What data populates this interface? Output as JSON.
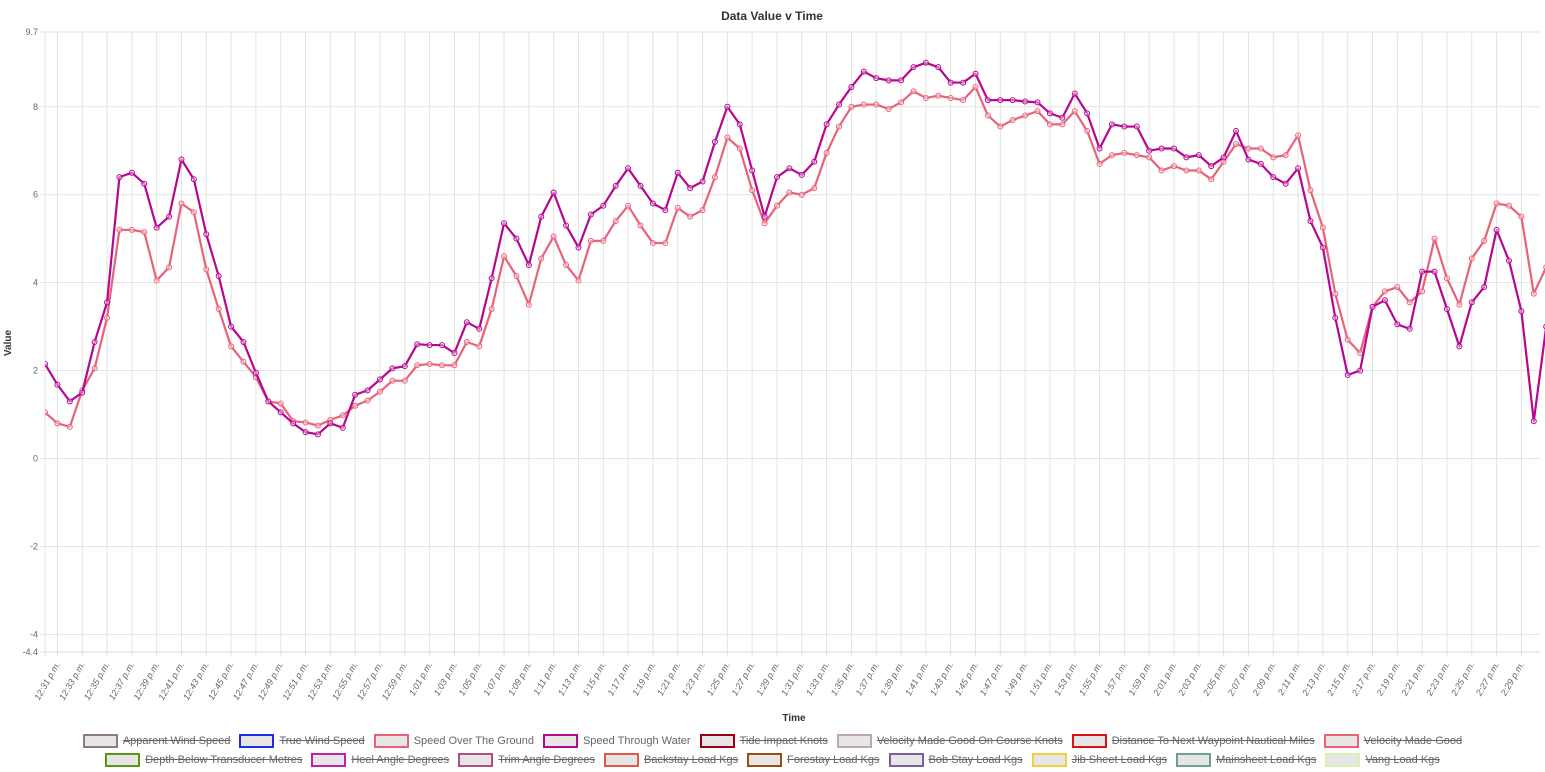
{
  "chart_data": {
    "type": "line",
    "title": "Data Value v Time",
    "xlabel": "Time",
    "ylabel": "Value",
    "ylim": [
      -4.4,
      9.7
    ],
    "y_ticks": [
      "9.7",
      "8",
      "6",
      "4",
      "2",
      "0",
      "-2",
      "-4",
      "-4.4"
    ],
    "y_tick_values": [
      9.7,
      8,
      6,
      4,
      2,
      0,
      -2,
      -4,
      -4.4
    ],
    "x_start": "12:30 p.m.",
    "x_step_minutes": 1,
    "x_tick_labels": [
      "12:31 p.m.",
      "12:33 p.m.",
      "12:35 p.m.",
      "12:37 p.m.",
      "12:39 p.m.",
      "12:41 p.m.",
      "12:43 p.m.",
      "12:45 p.m.",
      "12:47 p.m.",
      "12:49 p.m.",
      "12:51 p.m.",
      "12:53 p.m.",
      "12:55 p.m.",
      "12:57 p.m.",
      "12:59 p.m.",
      "1:01 p.m.",
      "1:03 p.m.",
      "1:05 p.m.",
      "1:07 p.m.",
      "1:09 p.m.",
      "1:11 p.m.",
      "1:13 p.m.",
      "1:15 p.m.",
      "1:17 p.m.",
      "1:19 p.m.",
      "1:21 p.m.",
      "1:23 p.m.",
      "1:25 p.m.",
      "1:27 p.m.",
      "1:29 p.m.",
      "1:31 p.m.",
      "1:33 p.m.",
      "1:35 p.m.",
      "1:37 p.m.",
      "1:39 p.m.",
      "1:41 p.m.",
      "1:43 p.m.",
      "1:45 p.m.",
      "1:47 p.m.",
      "1:49 p.m.",
      "1:51 p.m.",
      "1:53 p.m.",
      "1:55 p.m.",
      "1:57 p.m.",
      "1:59 p.m.",
      "2:01 p.m.",
      "2:03 p.m.",
      "2:05 p.m.",
      "2:07 p.m.",
      "2:09 p.m.",
      "2:11 p.m.",
      "2:13 p.m.",
      "2:15 p.m.",
      "2:17 p.m.",
      "2:19 p.m.",
      "2:21 p.m.",
      "2:23 p.m.",
      "2:25 p.m.",
      "2:27 p.m.",
      "2:29 p.m."
    ],
    "grid": true,
    "legend_placement": "bottom",
    "series": [
      {
        "name": "Speed Over The Ground",
        "color": "#e8627a",
        "values": [
          1.05,
          0.8,
          0.72,
          1.55,
          2.05,
          3.2,
          5.2,
          5.2,
          5.15,
          4.05,
          4.35,
          5.8,
          5.6,
          4.3,
          3.4,
          2.55,
          2.2,
          1.85,
          1.3,
          1.25,
          0.85,
          0.82,
          0.75,
          0.88,
          0.98,
          1.2,
          1.32,
          1.52,
          1.77,
          1.77,
          2.12,
          2.15,
          2.12,
          2.12,
          2.65,
          2.55,
          3.4,
          4.6,
          4.15,
          3.5,
          4.55,
          5.05,
          4.4,
          4.05,
          4.95,
          4.95,
          5.4,
          5.75,
          5.3,
          4.9,
          4.9,
          5.7,
          5.5,
          5.65,
          6.4,
          7.3,
          7.05,
          6.1,
          5.35,
          5.75,
          6.05,
          6.0,
          6.15,
          6.95,
          7.55,
          8.0,
          8.05,
          8.05,
          7.95,
          8.1,
          8.35,
          8.2,
          8.25,
          8.2,
          8.15,
          8.45,
          7.8,
          7.55,
          7.7,
          7.8,
          7.9,
          7.6,
          7.6,
          7.9,
          7.45,
          6.7,
          6.9,
          6.95,
          6.9,
          6.85,
          6.55,
          6.65,
          6.55,
          6.55,
          6.35,
          6.75,
          7.15,
          7.05,
          7.05,
          6.85,
          6.9,
          7.35,
          6.1,
          5.25,
          3.75,
          2.7,
          2.4,
          3.45,
          3.8,
          3.9,
          3.55,
          3.8,
          5.0,
          4.1,
          3.5,
          4.55,
          4.95,
          5.8,
          5.75,
          5.5,
          3.75,
          4.35
        ]
      },
      {
        "name": "Speed Through Water",
        "color": "#b5078f",
        "values": [
          2.15,
          1.68,
          1.3,
          1.5,
          2.65,
          3.55,
          6.4,
          6.5,
          6.25,
          5.25,
          5.5,
          6.8,
          6.35,
          5.1,
          4.15,
          3.0,
          2.65,
          1.95,
          1.3,
          1.05,
          0.8,
          0.6,
          0.55,
          0.8,
          0.7,
          1.45,
          1.55,
          1.8,
          2.05,
          2.1,
          2.6,
          2.58,
          2.58,
          2.4,
          3.1,
          2.95,
          4.1,
          5.35,
          5.0,
          4.4,
          5.5,
          6.05,
          5.3,
          4.8,
          5.55,
          5.75,
          6.2,
          6.6,
          6.2,
          5.8,
          5.65,
          6.5,
          6.15,
          6.3,
          7.2,
          8.0,
          7.6,
          6.55,
          5.5,
          6.4,
          6.6,
          6.45,
          6.75,
          7.6,
          8.05,
          8.45,
          8.8,
          8.65,
          8.6,
          8.6,
          8.9,
          9.0,
          8.9,
          8.55,
          8.55,
          8.75,
          8.15,
          8.15,
          8.15,
          8.12,
          8.1,
          7.85,
          7.75,
          8.3,
          7.85,
          7.05,
          7.6,
          7.55,
          7.55,
          7.0,
          7.05,
          7.05,
          6.85,
          6.9,
          6.65,
          6.85,
          7.45,
          6.8,
          6.7,
          6.4,
          6.25,
          6.6,
          5.4,
          4.8,
          3.2,
          1.9,
          2.0,
          3.45,
          3.6,
          3.05,
          2.95,
          4.25,
          4.25,
          3.4,
          2.55,
          3.55,
          3.9,
          5.2,
          4.5,
          3.35,
          0.85,
          3.0
        ]
      }
    ],
    "legend": [
      {
        "label": "Apparent Wind Speed",
        "color": "#8e7a8a",
        "hidden": true
      },
      {
        "label": "True Wind Speed",
        "color": "#1f2ee6",
        "hidden": true
      },
      {
        "label": "Speed Over The Ground",
        "color": "#e8627a",
        "hidden": false
      },
      {
        "label": "Speed Through Water",
        "color": "#b5078f",
        "hidden": false
      },
      {
        "label": "Tide Impact Knots",
        "color": "#990011",
        "hidden": true
      },
      {
        "label": "Velocity Made Good On Course Knots",
        "color": "#c0a8a8",
        "hidden": true
      },
      {
        "label": "Distance To Next Waypoint Nautical Miles",
        "color": "#dd1111",
        "hidden": true
      },
      {
        "label": "Velocity Made Good",
        "color": "#e8627a",
        "hidden": true
      },
      {
        "label": "Depth Below Transducer Metres",
        "color": "#5a9a10",
        "hidden": true
      },
      {
        "label": "Heel Angle Degrees",
        "color": "#c020b0",
        "hidden": true
      },
      {
        "label": "Trim Angle Degrees",
        "color": "#b05080",
        "hidden": true
      },
      {
        "label": "Backstay Load Kgs",
        "color": "#e05a48",
        "hidden": true
      },
      {
        "label": "Forestay Load Kgs",
        "color": "#9a5010",
        "hidden": true
      },
      {
        "label": "Bob Stay Load Kgs",
        "color": "#7a6098",
        "hidden": true
      },
      {
        "label": "Jib Sheet Load Kgs",
        "color": "#f0d040",
        "hidden": true
      },
      {
        "label": "Mainsheet Load Kgs",
        "color": "#70a090",
        "hidden": true
      },
      {
        "label": "Vang Load Kgs",
        "color": "#d8f0b0",
        "hidden": true
      }
    ]
  }
}
